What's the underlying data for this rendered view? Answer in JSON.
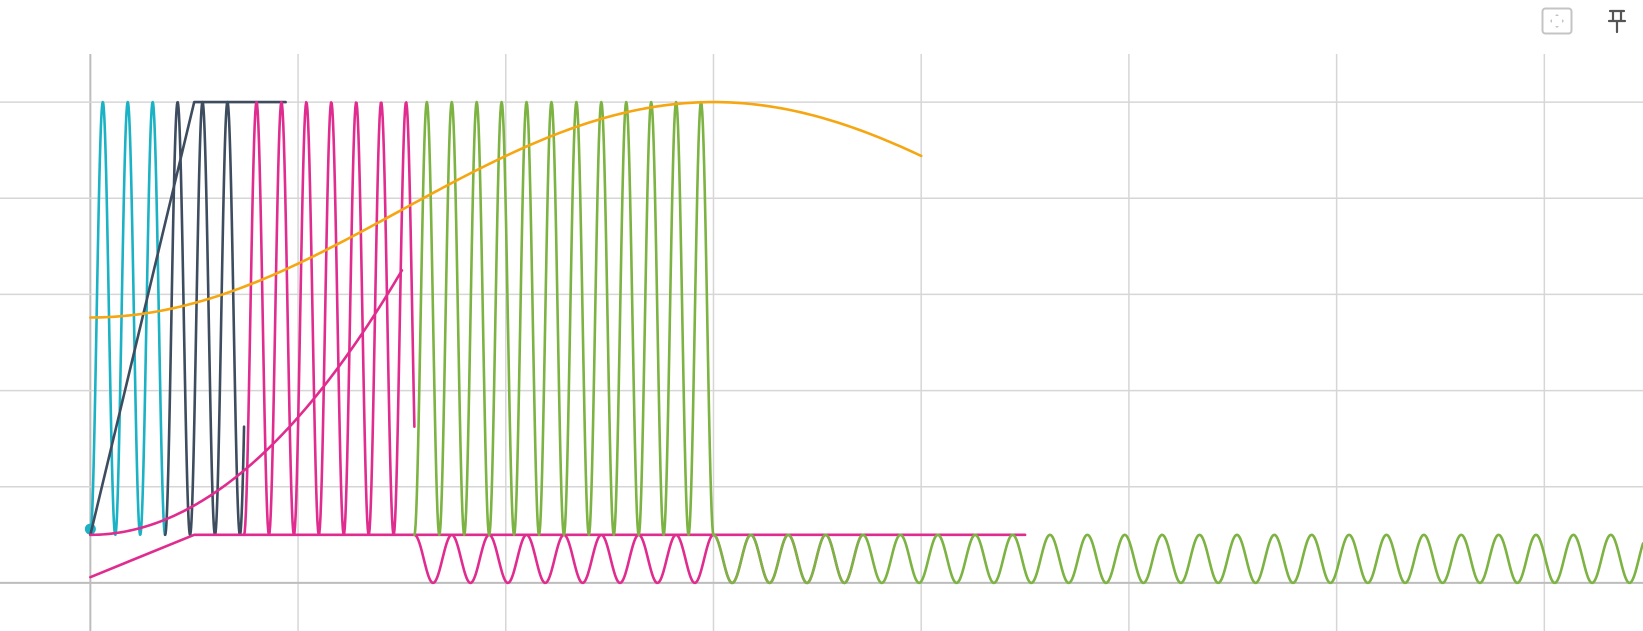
{
  "toolbar": {
    "fullscreen_icon": "fullscreen-icon",
    "pin_icon": "pin-icon"
  },
  "colors": {
    "grid": "#d6d6d6",
    "axis": "#bdbdbd",
    "teal": "#1ab2c4",
    "slate": "#3d4c5e",
    "magenta": "#e02c8f",
    "green": "#7cb342",
    "orange": "#f5a611"
  },
  "chart_data": {
    "type": "line",
    "title": "",
    "xlabel": "",
    "ylabel": "",
    "xlim": [
      -0.87,
      14.95
    ],
    "ylim": [
      -0.25,
      2.75
    ],
    "grid": true,
    "x_gridlines": [
      0,
      2,
      4,
      6,
      8,
      10,
      12,
      14
    ],
    "y_gridlines": [
      0,
      0.5,
      1,
      1.5,
      2,
      2.5
    ],
    "series": [
      {
        "color": "#1ab2c4",
        "kind": "sine",
        "x_start": 0,
        "x_end": 0.72,
        "period": 0.24,
        "low": 0.25,
        "high": 2.5,
        "phase_start": "low"
      },
      {
        "color": "#1ab2c4",
        "kind": "marker",
        "points": [
          [
            0,
            0.28
          ]
        ]
      },
      {
        "color": "#3d4c5e",
        "kind": "polyline",
        "points": [
          [
            0,
            0.25
          ],
          [
            1.0,
            2.5
          ],
          [
            1.88,
            2.5
          ]
        ]
      },
      {
        "color": "#3d4c5e",
        "kind": "sine",
        "x_start": 0.72,
        "x_end": 1.48,
        "period": 0.24,
        "low": 0.25,
        "high": 2.5,
        "phase_start": "low"
      },
      {
        "color": "#e02c8f",
        "kind": "sine",
        "x_start": 1.48,
        "x_end": 3.12,
        "period": 0.24,
        "low": 0.25,
        "high": 2.5,
        "phase_start": "low"
      },
      {
        "color": "#e02c8f",
        "kind": "quadratic",
        "x_start": 0,
        "x_end": 3.0,
        "base": 0.25,
        "vertex_x": 0,
        "coef": 0.1528
      },
      {
        "color": "#e02c8f",
        "kind": "polyline",
        "points": [
          [
            0,
            0.03
          ],
          [
            1.0,
            0.25
          ],
          [
            9.0,
            0.25
          ]
        ]
      },
      {
        "color": "#e02c8f",
        "kind": "sine",
        "x_start": 3.12,
        "x_end": 7.45,
        "period": 0.36,
        "low": 0.0,
        "high": 0.25,
        "phase_start": "high"
      },
      {
        "color": "#7cb342",
        "kind": "sine",
        "x_start": 3.12,
        "x_end": 6.0,
        "period": 0.24,
        "low": 0.25,
        "high": 2.5,
        "phase_start": "low"
      },
      {
        "color": "#7cb342",
        "kind": "sine",
        "x_start": 6.0,
        "x_end": 14.95,
        "period": 0.36,
        "low": 0.0,
        "high": 0.25,
        "phase_start": "high"
      },
      {
        "color": "#f5a611",
        "kind": "cosine-rise",
        "x_start": 0,
        "x_end": 8.0,
        "low": 1.38,
        "high": 2.5,
        "peak_x": 6.0
      }
    ]
  }
}
